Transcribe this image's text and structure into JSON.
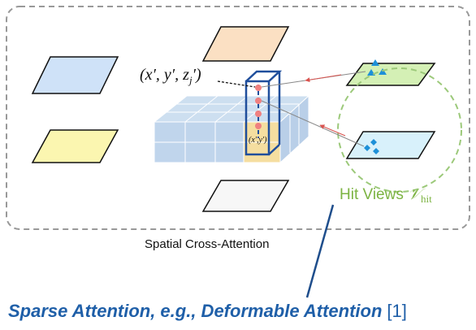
{
  "labels": {
    "point_3d_a": "(x′, y′, z",
    "point_3d_sub": "j",
    "point_3d_b": "′)",
    "point_2d": "(x′,y′)",
    "hit_views": "Hit Views ",
    "hit_symbol": "𝒱",
    "hit_sub": "hit",
    "caption": "Spatial Cross-Attention",
    "sparse": "Sparse Attention, e.g., Deformable Attention",
    "ref": "[1]"
  }
}
